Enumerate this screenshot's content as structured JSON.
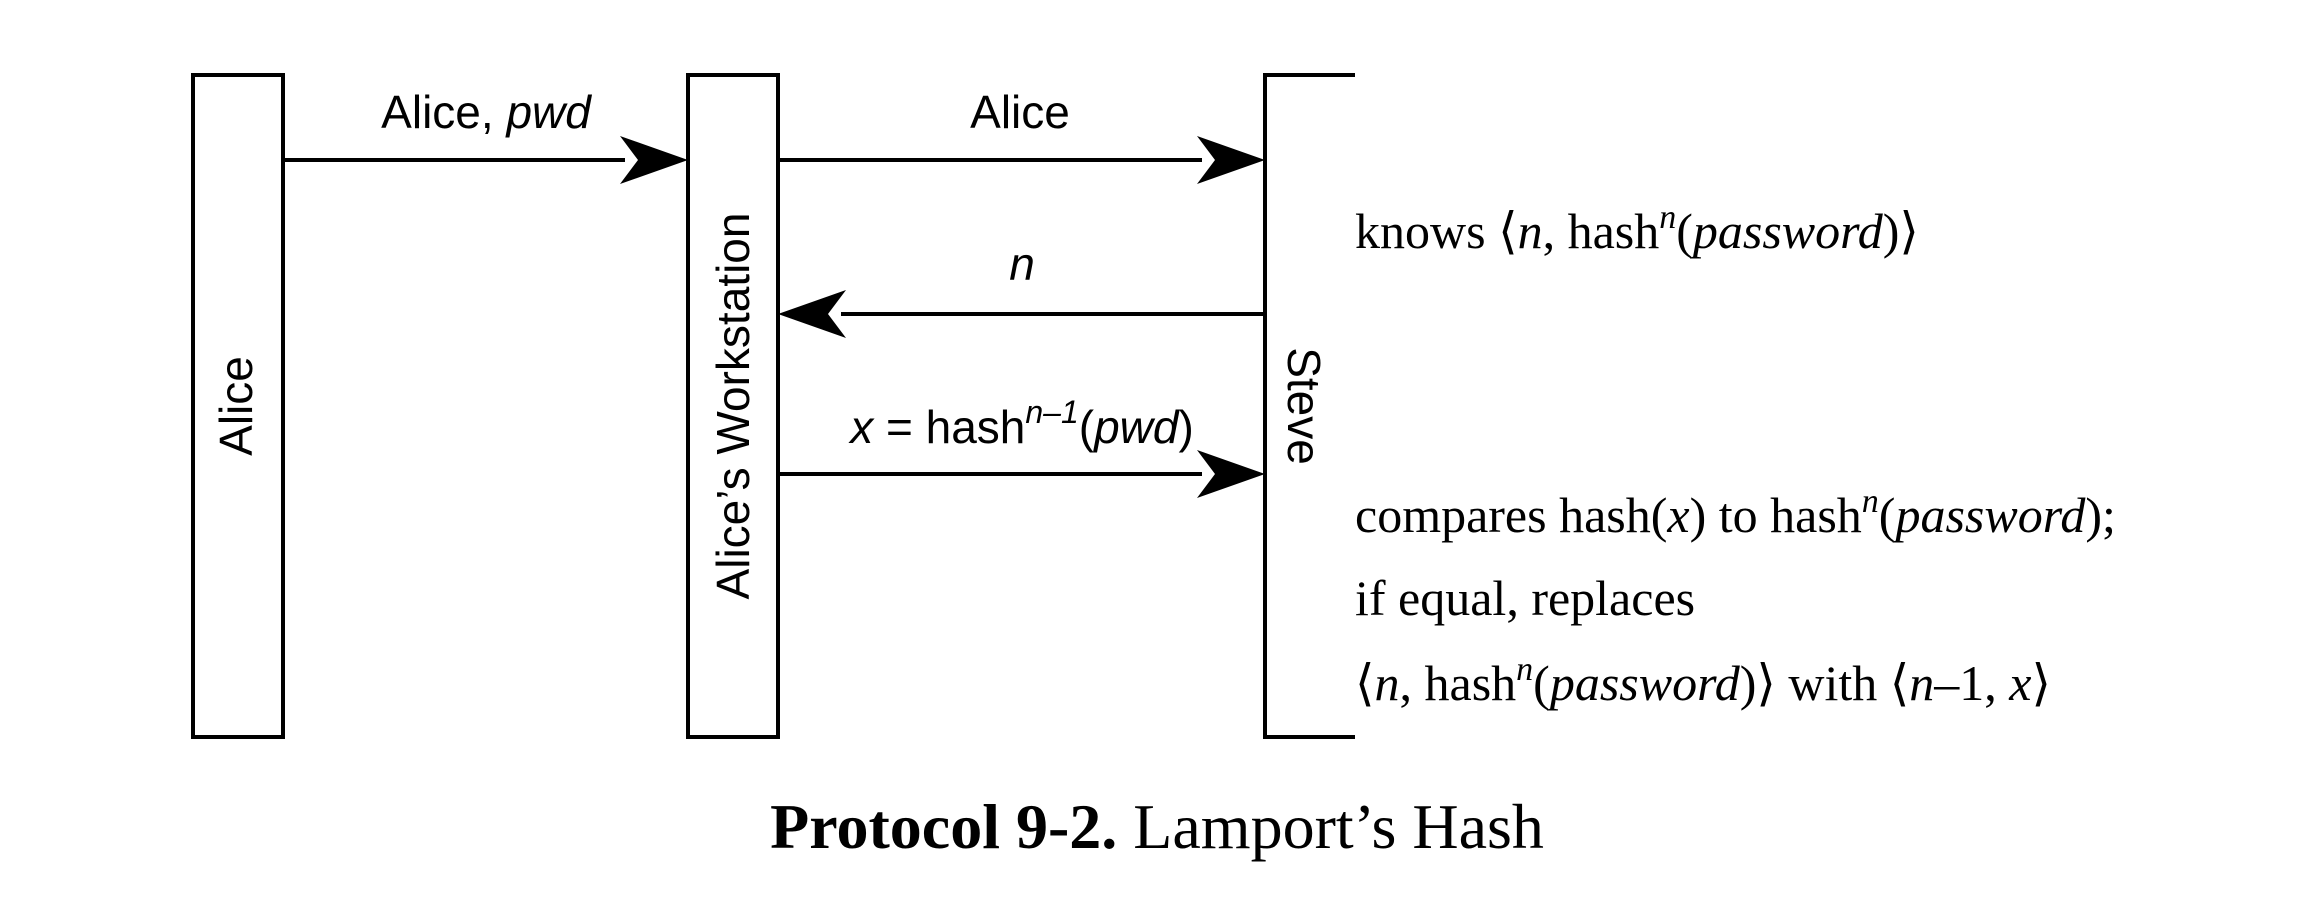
{
  "participants": {
    "alice": "Alice",
    "workstation": "Alice’s Workstation",
    "steve": "Steve"
  },
  "messages": {
    "m1": {
      "name": "Alice, ",
      "italic": "pwd"
    },
    "m2": {
      "text": "Alice"
    },
    "m3": {
      "italic": "n"
    },
    "m4": {
      "x": "x",
      "eq": " = hash",
      "sup": "n–1",
      "open": "(",
      "arg": "pwd",
      "close": ")"
    }
  },
  "annotations": {
    "knows": {
      "pre": "knows ⟨",
      "n": "n",
      "mid": ", hash",
      "sup": "n",
      "open": "(",
      "arg": "password",
      "close": ")⟩"
    },
    "compares": {
      "pre": "compares hash(",
      "x": "x",
      "mid": ") to hash",
      "sup": "n",
      "open": "(",
      "arg": "password",
      "close": ");"
    },
    "ifequal": {
      "text": "if equal, replaces"
    },
    "replaces": {
      "pre": "⟨",
      "n1": "n",
      "mid": ", hash",
      "sup": "n",
      "open": "(",
      "arg": "password",
      "close": ")⟩ with ⟨",
      "n2": "n",
      "minus": "–1, ",
      "x": "x",
      "end": "⟩"
    }
  },
  "caption": {
    "label": "Protocol 9-2.",
    "title": " Lamport’s Hash"
  }
}
